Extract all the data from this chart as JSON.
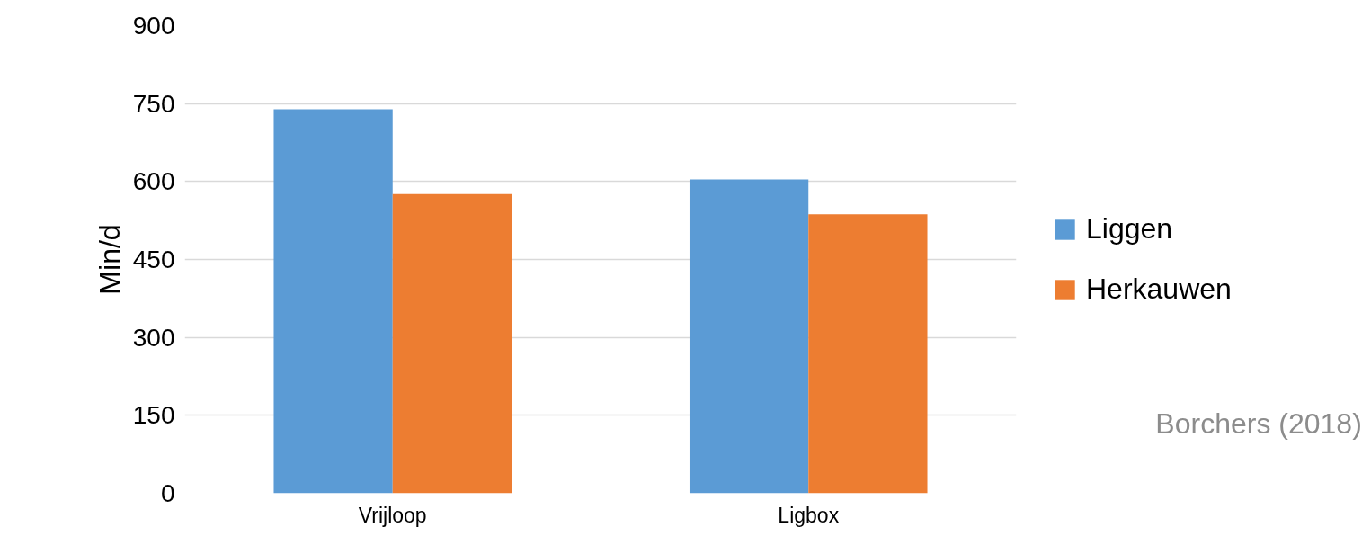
{
  "chart_data": {
    "type": "bar",
    "ylabel": "Min/d",
    "categories": [
      "Vrijloop",
      "Ligbox"
    ],
    "series": [
      {
        "name": "Liggen",
        "color": "#5b9bd5",
        "values": [
          739,
          604
        ]
      },
      {
        "name": "Herkauwen",
        "color": "#ed7d31",
        "values": [
          576,
          537
        ]
      }
    ],
    "ylim": [
      0,
      900
    ],
    "yticks": [
      0,
      150,
      300,
      450,
      600,
      750,
      900
    ],
    "grid": "y",
    "legend": "right",
    "annotations": [
      "Borchers (2018)"
    ]
  }
}
